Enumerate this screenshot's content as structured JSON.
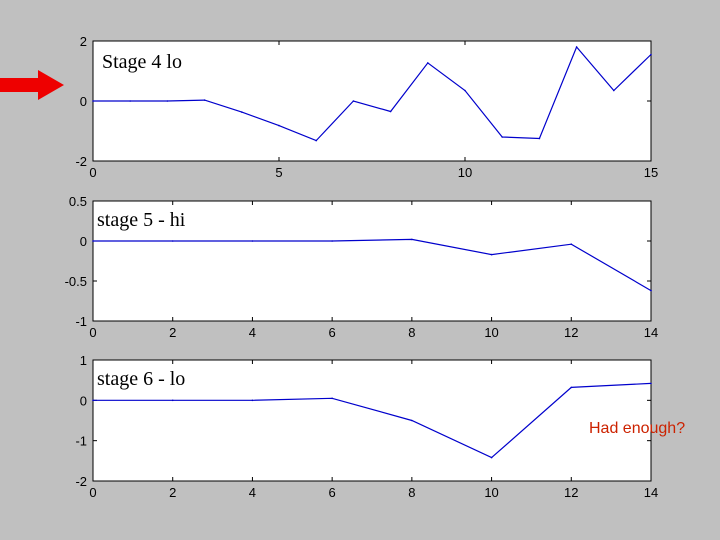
{
  "colors": {
    "background": "#c0c0c0",
    "plot_bg": "#ffffff",
    "line": "#0000cc",
    "arrow": "#ee0000",
    "note": "#cc2200"
  },
  "annotation": {
    "text": "Had enough?",
    "arrow_icon": "right-arrow-icon"
  },
  "chart_data": [
    {
      "type": "line",
      "title": "Stage 4 lo",
      "xlim": [
        0,
        15
      ],
      "ylim": [
        -2,
        2
      ],
      "xticks": [
        0,
        5,
        10,
        15
      ],
      "yticks": [
        -2,
        0,
        2
      ],
      "x": [
        0,
        1,
        2,
        3,
        4,
        5,
        6,
        7,
        8,
        9,
        10,
        11,
        12,
        13,
        14,
        15
      ],
      "series": [
        {
          "values": [
            0,
            0,
            0,
            0.03,
            -0.37,
            -0.82,
            -1.32,
            0.0,
            -0.35,
            1.27,
            0.35,
            -1.2,
            -1.25,
            1.8,
            0.35,
            1.55
          ]
        }
      ]
    },
    {
      "type": "line",
      "title": "stage 5 - hi",
      "xlim": [
        0,
        14
      ],
      "ylim": [
        -1,
        0.5
      ],
      "xticks": [
        0,
        2,
        4,
        6,
        8,
        10,
        12,
        14
      ],
      "yticks": [
        -1,
        -0.5,
        0,
        0.5
      ],
      "x": [
        0,
        2,
        4,
        6,
        8,
        10,
        12,
        14
      ],
      "series": [
        {
          "values": [
            0,
            0,
            0,
            0,
            0.02,
            -0.17,
            -0.04,
            -0.62
          ]
        }
      ]
    },
    {
      "type": "line",
      "title": "stage 6 - lo",
      "xlim": [
        0,
        14
      ],
      "ylim": [
        -2,
        1
      ],
      "xticks": [
        0,
        2,
        4,
        6,
        8,
        10,
        12,
        14
      ],
      "yticks": [
        -2,
        -1,
        0,
        1
      ],
      "x": [
        0,
        2,
        4,
        6,
        8,
        10,
        12,
        14
      ],
      "series": [
        {
          "values": [
            0,
            0,
            0,
            0.05,
            -0.5,
            -1.42,
            0.32,
            0.42
          ]
        }
      ]
    }
  ]
}
